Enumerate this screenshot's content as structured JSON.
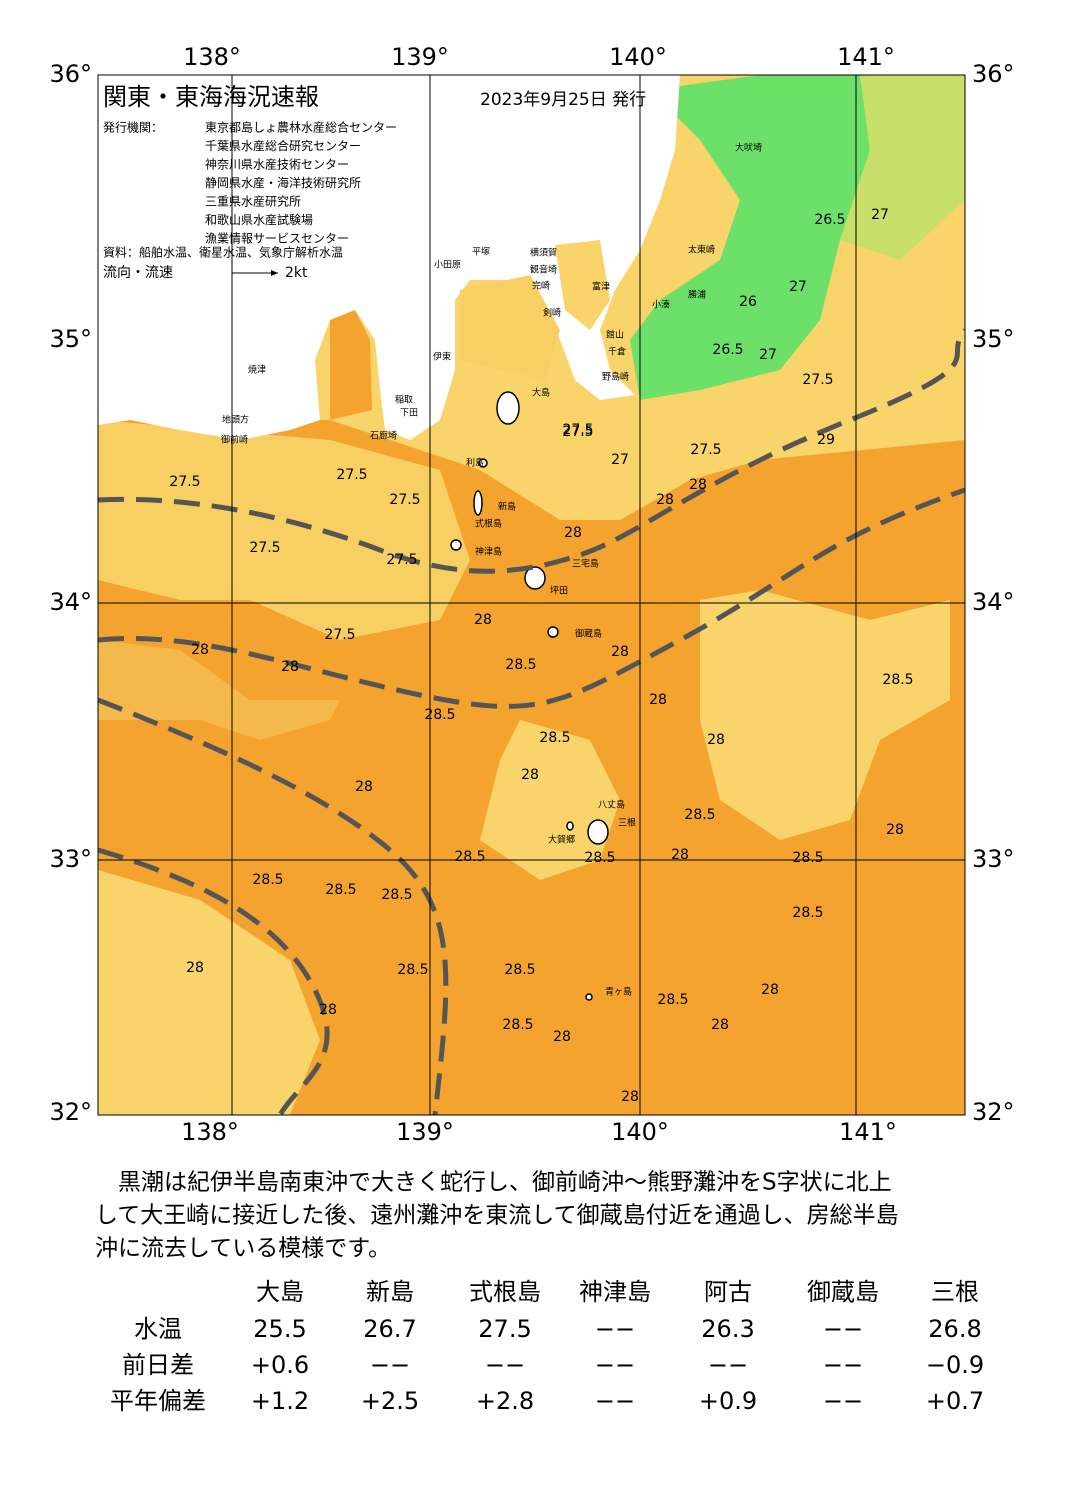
{
  "header": {
    "title": "関東・東海海況速報",
    "date": "2023年9月25日 発行",
    "issuer_label": "発行機関：",
    "issuers": [
      "東京都島しょ農林水産総合センター",
      "千葉県水産総合研究センター",
      "神奈川県水産技術センター",
      "静岡県水産・海洋技術研究所",
      "三重県水産研究所",
      "和歌山県水産試験場",
      "漁業情報サービスセンター"
    ],
    "source": "資料：船舶水温、衛星水温、気象庁解析水温",
    "legend_label": "流向・流速",
    "legend_speed": "2kt"
  },
  "axes": {
    "top": [
      "138°",
      "139°",
      "140°",
      "141°"
    ],
    "bottom": [
      "138°",
      "139°",
      "140°",
      "141°"
    ],
    "left": [
      "36°",
      "35°",
      "34°",
      "33°",
      "32°"
    ],
    "right": [
      "36°",
      "35°",
      "34°",
      "33°",
      "32°"
    ]
  },
  "places": [
    "大吠埼",
    "太東崎",
    "勝浦",
    "小湊",
    "富津",
    "館山",
    "千倉",
    "野島崎",
    "平塚",
    "横須賀",
    "観音埼",
    "完崎",
    "剣崎",
    "小田原",
    "大島",
    "伊東",
    "稲取",
    "下田",
    "石廊埼",
    "御前崎",
    "焼津",
    "地頭方",
    "利島",
    "新島",
    "式根島",
    "神津島",
    "三宅島",
    "坪田",
    "御蔵島",
    "八丈島",
    "三根",
    "大賀郷",
    "青ヶ島"
  ],
  "contours": [
    "26.5",
    "27",
    "26",
    "27",
    "26.5",
    "27",
    "27.5",
    "27.5",
    "27",
    "27.5",
    "28",
    "29",
    "28",
    "27.5",
    "27.5",
    "27.5",
    "27.5",
    "27.5",
    "27.5",
    "27.5",
    "28",
    "28",
    "28",
    "28.5",
    "28.5",
    "28",
    "28",
    "28",
    "28.5",
    "28",
    "28",
    "28",
    "28.5",
    "28",
    "28.5",
    "28.5",
    "28.5",
    "28.5",
    "28.5",
    "28",
    "28.5",
    "28.5",
    "28.5",
    "28.5",
    "28.5",
    "28.5",
    "28",
    "28",
    "28.5",
    "28",
    "28",
    "28",
    "28"
  ],
  "summary": [
    "　黒潮は紀伊半島南東沖で大きく蛇行し、御前崎沖～熊野灘沖をS字状に北上",
    "して大王崎に接近した後、遠州灘沖を東流して御蔵島付近を通過し、房総半島",
    "沖に流去している模様です。"
  ],
  "table": {
    "columns": [
      "大島",
      "新島",
      "式根島",
      "神津島",
      "阿古",
      "御蔵島",
      "三根"
    ],
    "rows": [
      {
        "label": "水温",
        "cells": [
          "25.5",
          "26.7",
          "27.5",
          "−−",
          "26.3",
          "−−",
          "26.8"
        ]
      },
      {
        "label": "前日差",
        "cells": [
          "+0.6",
          "−−",
          "−−",
          "−−",
          "−−",
          "−−",
          "−0.9"
        ]
      },
      {
        "label": "平年偏差",
        "cells": [
          "+1.2",
          "+2.5",
          "+2.8",
          "−−",
          "+0.9",
          "−−",
          "+0.7"
        ]
      }
    ]
  }
}
